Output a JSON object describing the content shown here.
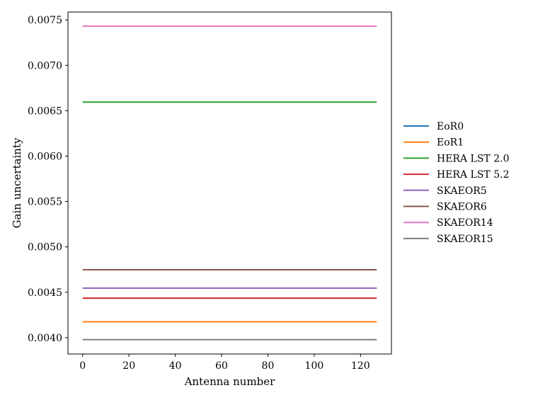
{
  "chart_data": {
    "type": "line",
    "title": "",
    "xlabel": "Antenna number",
    "ylabel": "Gain uncertainty",
    "xlim": [
      -6.35,
      133.35
    ],
    "ylim": [
      0.00382,
      0.007587
    ],
    "x_range": [
      0,
      127
    ],
    "xticks": [
      0,
      20,
      40,
      60,
      80,
      100,
      120
    ],
    "xtick_labels": [
      "0",
      "20",
      "40",
      "60",
      "80",
      "100",
      "120"
    ],
    "yticks": [
      0.004,
      0.0045,
      0.005,
      0.0055,
      0.006,
      0.0065,
      0.007,
      0.0075
    ],
    "ytick_labels": [
      "0.0040",
      "0.0045",
      "0.0050",
      "0.0055",
      "0.0060",
      "0.0065",
      "0.0070",
      "0.0075"
    ],
    "grid": false,
    "legend_position": "right, outside plot",
    "series": [
      {
        "name": "EoR0",
        "color": "#1f77b4",
        "value": 0.004545
      },
      {
        "name": "EoR1",
        "color": "#ff7f0e",
        "value": 0.004175
      },
      {
        "name": "HERA LST 2.0",
        "color": "#2ca02c",
        "value": 0.006595
      },
      {
        "name": "HERA LST 5.2",
        "color": "#d62728",
        "value": 0.004435
      },
      {
        "name": "SKAEOR5",
        "color": "#9467bd",
        "value": 0.004545
      },
      {
        "name": "SKAEOR6",
        "color": "#8c564b",
        "value": 0.004748
      },
      {
        "name": "SKAEOR14",
        "color": "#e377c2",
        "value": 0.007432
      },
      {
        "name": "SKAEOR15",
        "color": "#7f7f7f",
        "value": 0.003978
      }
    ]
  }
}
